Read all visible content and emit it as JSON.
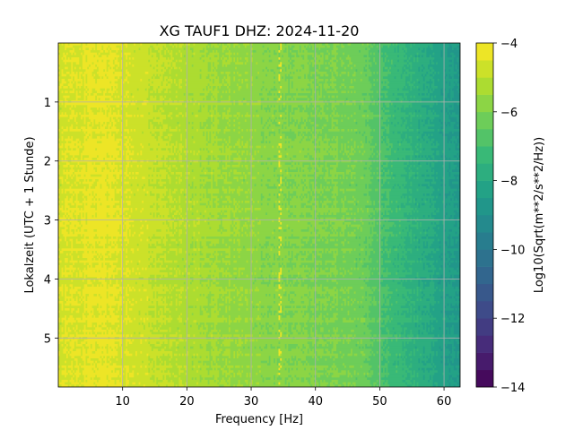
{
  "chart_data": {
    "type": "heatmap",
    "title": "XG TAUF1  DHZ: 2024-11-20",
    "xlabel": "Frequency [Hz]",
    "ylabel": "Lokalzeit (UTC + 1 Stunde)",
    "colorbar_label": "Log10(Sqrt(m**2/s**2/Hz))",
    "colormap": "viridis",
    "xlim": [
      0,
      62.5
    ],
    "ylim": [
      5.83,
      0
    ],
    "clim": [
      -14,
      -4
    ],
    "grid": true,
    "x_ticks": [
      10,
      20,
      30,
      40,
      50,
      60
    ],
    "x_tick_labels": [
      "10",
      "20",
      "30",
      "40",
      "50",
      "60"
    ],
    "y_ticks": [
      1,
      2,
      3,
      4,
      5
    ],
    "y_tick_labels": [
      "1",
      "2",
      "3",
      "4",
      "5"
    ],
    "colorbar_ticks": [
      -4,
      -6,
      -8,
      -10,
      -12,
      -14
    ],
    "colorbar_tick_labels": [
      "−4",
      "−6",
      "−8",
      "−10",
      "−12",
      "−14"
    ],
    "spectrum_profile": {
      "frequency_hz": [
        0,
        5,
        10,
        15,
        20,
        25,
        30,
        35,
        40,
        45,
        48,
        50,
        52,
        55,
        58,
        60,
        62.5
      ],
      "log_amplitude": [
        -4.6,
        -4.4,
        -4.5,
        -4.9,
        -5.2,
        -5.5,
        -5.7,
        -5.9,
        -6.0,
        -6.1,
        -6.3,
        -6.8,
        -7.2,
        -7.6,
        -8.0,
        -8.3,
        -8.6
      ]
    },
    "spectral_line": {
      "frequency_hz": 34.5,
      "log_amplitude": -4.5
    }
  }
}
